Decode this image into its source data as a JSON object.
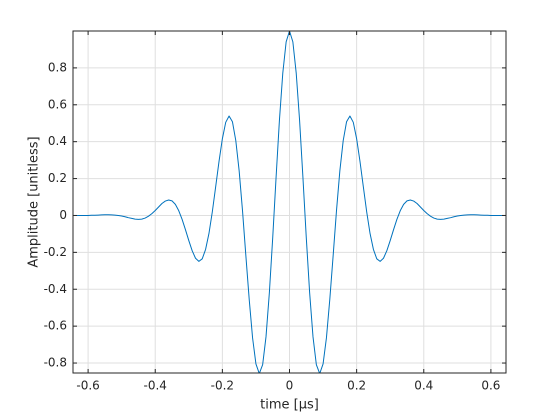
{
  "chart_data": {
    "type": "line",
    "xlabel": "time [μs]",
    "ylabel": "Amplitude [unitless]",
    "x": [
      -0.64,
      -0.63,
      -0.62,
      -0.61,
      -0.6,
      -0.59,
      -0.58,
      -0.57,
      -0.56,
      -0.55,
      -0.54,
      -0.53,
      -0.52,
      -0.51,
      -0.5,
      -0.49,
      -0.48,
      -0.47,
      -0.46,
      -0.45,
      -0.44,
      -0.43,
      -0.42,
      -0.41,
      -0.4,
      -0.39,
      -0.38,
      -0.37,
      -0.36,
      -0.35,
      -0.34,
      -0.33,
      -0.32,
      -0.31,
      -0.3,
      -0.29,
      -0.28,
      -0.27,
      -0.26,
      -0.25,
      -0.24,
      -0.23,
      -0.22,
      -0.21,
      -0.2,
      -0.19,
      -0.18,
      -0.17,
      -0.16,
      -0.15,
      -0.14,
      -0.13,
      -0.12,
      -0.11,
      -0.1,
      -0.09,
      -0.08,
      -0.07,
      -0.06,
      -0.05,
      -0.04,
      -0.03,
      -0.02,
      -0.01,
      0,
      0.01,
      0.02,
      0.03,
      0.04,
      0.05,
      0.06,
      0.07,
      0.08,
      0.09,
      0.1,
      0.11,
      0.12,
      0.13,
      0.14,
      0.15,
      0.16,
      0.17,
      0.18,
      0.19,
      0.2,
      0.21,
      0.22,
      0.23,
      0.24,
      0.25,
      0.26,
      0.27,
      0.28,
      0.29,
      0.3,
      0.31,
      0.32,
      0.33,
      0.34,
      0.35,
      0.36,
      0.37,
      0.38,
      0.39,
      0.4,
      0.41,
      0.42,
      0.43,
      0.44,
      0.45,
      0.46,
      0.47,
      0.48,
      0.49,
      0.5,
      0.51,
      0.52,
      0.53,
      0.54,
      0.55,
      0.56,
      0.57,
      0.58,
      0.59,
      0.6,
      0.61,
      0.62,
      0.63,
      0.64
    ],
    "values": [
      0,
      0,
      0,
      0,
      0,
      0.001,
      0.001,
      0.002,
      0.003,
      0.004,
      0.004,
      0.003,
      0.002,
      0,
      -0.003,
      -0.007,
      -0.012,
      -0.016,
      -0.02,
      -0.021,
      -0.02,
      -0.014,
      -0.004,
      0.01,
      0.027,
      0.046,
      0.065,
      0.078,
      0.084,
      0.079,
      0.06,
      0.026,
      -0.021,
      -0.077,
      -0.136,
      -0.191,
      -0.232,
      -0.249,
      -0.235,
      -0.184,
      -0.098,
      0.019,
      0.155,
      0.293,
      0.416,
      0.505,
      0.539,
      0.508,
      0.406,
      0.242,
      0.026,
      -0.218,
      -0.456,
      -0.664,
      -0.805,
      -0.857,
      -0.809,
      -0.658,
      -0.419,
      -0.12,
      0.206,
      0.517,
      0.772,
      0.941,
      1,
      0.941,
      0.772,
      0.517,
      0.206,
      -0.12,
      -0.419,
      -0.658,
      -0.809,
      -0.857,
      -0.805,
      -0.664,
      -0.456,
      -0.218,
      0.026,
      0.242,
      0.406,
      0.508,
      0.539,
      0.505,
      0.416,
      0.293,
      0.155,
      0.019,
      -0.098,
      -0.184,
      -0.235,
      -0.249,
      -0.232,
      -0.191,
      -0.136,
      -0.077,
      -0.021,
      0.026,
      0.06,
      0.079,
      0.084,
      0.078,
      0.065,
      0.046,
      0.027,
      0.01,
      -0.004,
      -0.014,
      -0.02,
      -0.021,
      -0.02,
      -0.016,
      -0.012,
      -0.007,
      -0.003,
      0,
      0.002,
      0.003,
      0.004,
      0.004,
      0.003,
      0.002,
      0.001,
      0.001,
      0,
      0,
      0,
      0,
      0
    ],
    "color": "#0072bd",
    "xlim": [
      -0.645,
      0.645
    ],
    "xticks": [
      -0.6,
      -0.4,
      -0.2,
      0,
      0.2,
      0.4,
      0.6
    ],
    "ylim": [
      -0.854,
      1
    ],
    "yticks": [
      -0.8,
      -0.6,
      -0.4,
      -0.2,
      0,
      0.2,
      0.4,
      0.6,
      0.8
    ],
    "grid": true
  }
}
